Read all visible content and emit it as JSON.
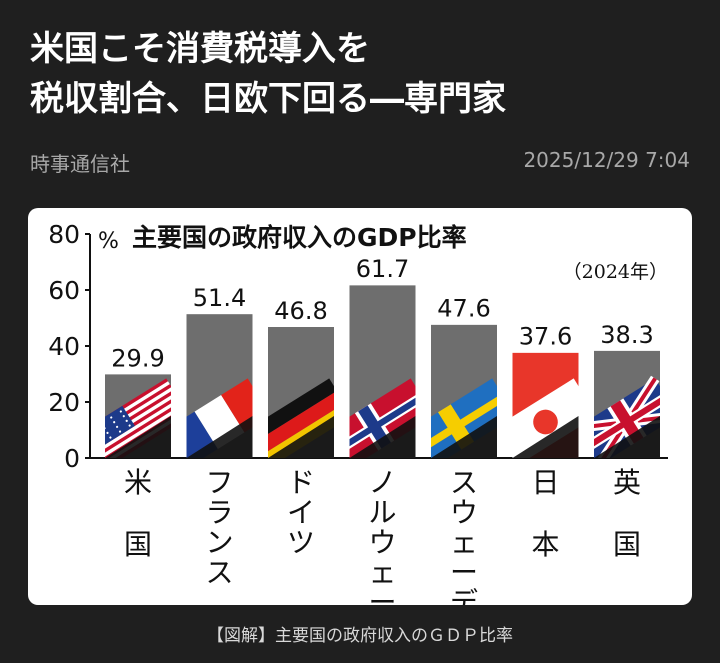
{
  "article": {
    "headline_line1": "米国こそ消費税導入を",
    "headline_line2": "税収割合、日欧下回る―専門家",
    "source": "時事通信社",
    "timestamp": "2025/12/29 7:04",
    "caption": "【図解】主要国の政府収入のＧＤＰ比率"
  },
  "chart_data": {
    "type": "bar",
    "title": "主要国の政府収入のGDP比率",
    "subtitle": "（2024年）",
    "ylabel": "%",
    "ylim": [
      0,
      80
    ],
    "yticks": [
      0,
      20,
      40,
      60,
      80
    ],
    "categories": [
      "米国",
      "フランス",
      "ドイツ",
      "ノルウェー",
      "スウェーデン",
      "日本",
      "英国"
    ],
    "category_labels": [
      "米\n\n国",
      "フラ\nンス",
      "ドイ\nツ",
      "ノル\nウェー",
      "スウェ\nーデン",
      "日\n\n本",
      "英\n\n国"
    ],
    "values": [
      29.9,
      51.4,
      46.8,
      61.7,
      47.6,
      37.6,
      38.3
    ],
    "value_labels": [
      "29.9",
      "51.4",
      "46.8",
      "61.7",
      "47.6",
      "37.6",
      "38.3"
    ],
    "flags": [
      "usa-flag",
      "france-flag",
      "germany-flag",
      "norway-flag",
      "sweden-flag",
      "japan-flag",
      "uk-flag"
    ],
    "bar_color": "#6e6e6e",
    "highlight_color": "#e8362a"
  }
}
